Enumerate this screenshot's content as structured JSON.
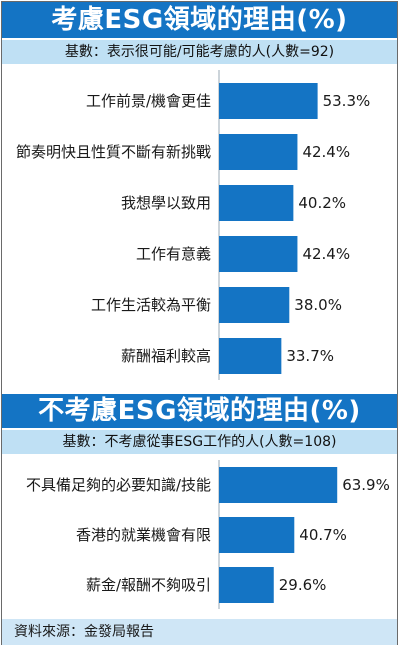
{
  "chart_data": [
    {
      "type": "bar",
      "title": "考慮ESG領域的理由(%)",
      "subtitle": "基數：表示很可能/可能考慮的人(人數=92)",
      "categories": [
        "工作前景/機會更佳",
        "節奏明快且性質不斷有新挑戰",
        "我想學以致用",
        "工作有意義",
        "工作生活較為平衡",
        "薪酬福利較高"
      ],
      "values": [
        53.3,
        42.4,
        40.2,
        42.4,
        38.0,
        33.7
      ],
      "value_labels": [
        "53.3%",
        "42.4%",
        "40.2%",
        "42.4%",
        "38.0%",
        "33.7%"
      ],
      "orientation": "horizontal",
      "bar_color": "#1474c4"
    },
    {
      "type": "bar",
      "title": "不考慮ESG領域的理由(%)",
      "subtitle": "基數：不考慮從事ESG工作的人(人數=108)",
      "categories": [
        "不具備足夠的必要知識/技能",
        "香港的就業機會有限",
        "薪金/報酬不夠吸引"
      ],
      "values": [
        63.9,
        40.7,
        29.6
      ],
      "value_labels": [
        "63.9%",
        "40.7%",
        "29.6%"
      ],
      "orientation": "horizontal",
      "bar_color": "#1474c4"
    }
  ],
  "source": "資料來源：金發局報告"
}
